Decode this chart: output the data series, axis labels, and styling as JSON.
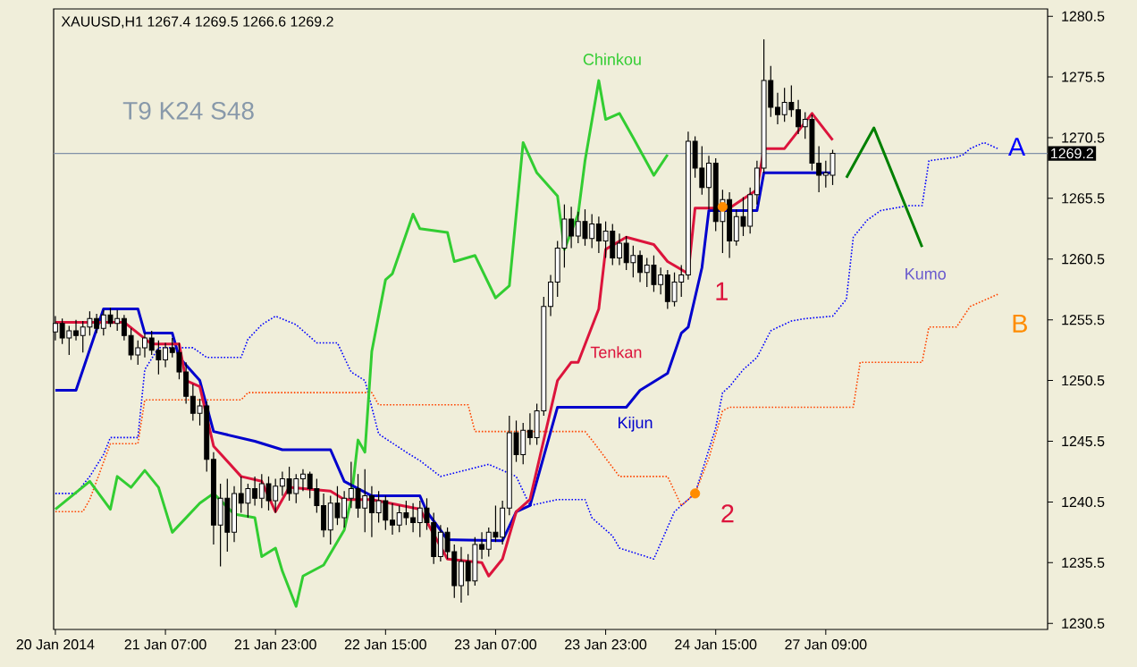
{
  "chart_data": {
    "type": "candlestick",
    "title": "XAUUSD,H1  1267.4 1269.5 1266.6 1269.2",
    "annotations": [
      "T9 K24 S48",
      "Chinkou",
      "Tenkan",
      "Kijun",
      "Kumo",
      "A",
      "B",
      "1",
      "2"
    ],
    "categories": [
      "20 Jan 2014",
      null,
      null,
      null,
      null,
      null,
      null,
      null,
      null,
      null,
      null,
      null,
      null,
      null,
      null,
      null,
      "21 Jan 07:00",
      null,
      null,
      null,
      null,
      null,
      null,
      null,
      null,
      null,
      null,
      null,
      null,
      null,
      null,
      null,
      "21 Jan 23:00",
      null,
      null,
      null,
      null,
      null,
      null,
      null,
      null,
      null,
      null,
      null,
      null,
      null,
      null,
      null,
      "22 Jan 15:00",
      null,
      null,
      null,
      null,
      null,
      null,
      null,
      null,
      null,
      null,
      null,
      null,
      null,
      null,
      null,
      "23 Jan 07:00",
      null,
      null,
      null,
      null,
      null,
      null,
      null,
      null,
      null,
      null,
      null,
      null,
      null,
      null,
      null,
      "23 Jan 23:00",
      null,
      null,
      null,
      null,
      null,
      null,
      null,
      null,
      null,
      null,
      null,
      null,
      null,
      null,
      null,
      "24 Jan 15:00",
      null,
      null,
      null,
      null,
      null,
      null,
      null,
      null,
      null,
      null,
      null,
      null,
      null,
      null,
      null,
      "27 Jan 09:00",
      null,
      null,
      null,
      null,
      null,
      null,
      null,
      null,
      null,
      null,
      null,
      null,
      null,
      null,
      null,
      null,
      null,
      null,
      null,
      null,
      null,
      null,
      null,
      null,
      null,
      null,
      null,
      null,
      null,
      null,
      null,
      null
    ],
    "ohlc": [
      [
        1254.5,
        1255.8,
        1253.8,
        1255.2
      ],
      [
        1255.2,
        1255.6,
        1253.5,
        1254.0
      ],
      [
        1254.0,
        1255.0,
        1252.6,
        1254.6
      ],
      [
        1254.6,
        1255.5,
        1253.8,
        1254.2
      ],
      [
        1254.2,
        1255.4,
        1252.8,
        1254.9
      ],
      [
        1254.9,
        1256.2,
        1254.2,
        1255.6
      ],
      [
        1255.6,
        1256.0,
        1254.4,
        1254.8
      ],
      [
        1254.8,
        1256.3,
        1254.2,
        1255.9
      ],
      [
        1255.9,
        1256.5,
        1254.9,
        1255.2
      ],
      [
        1255.2,
        1256.3,
        1254.6,
        1255.6
      ],
      [
        1255.6,
        1255.9,
        1253.8,
        1254.2
      ],
      [
        1254.2,
        1254.8,
        1252.2,
        1252.6
      ],
      [
        1252.6,
        1253.8,
        1251.8,
        1253.2
      ],
      [
        1253.2,
        1254.4,
        1252.4,
        1254.0
      ],
      [
        1254.0,
        1254.6,
        1252.6,
        1253.0
      ],
      [
        1253.0,
        1253.8,
        1251.0,
        1252.2
      ],
      [
        1252.2,
        1253.6,
        1251.6,
        1253.2
      ],
      [
        1253.2,
        1254.0,
        1252.4,
        1252.8
      ],
      [
        1252.8,
        1253.6,
        1250.6,
        1251.2
      ],
      [
        1251.2,
        1252.0,
        1248.6,
        1249.2
      ],
      [
        1249.2,
        1250.2,
        1247.2,
        1247.8
      ],
      [
        1247.8,
        1249.0,
        1246.8,
        1248.4
      ],
      [
        1248.4,
        1248.8,
        1243.0,
        1244.0
      ],
      [
        1244.0,
        1244.6,
        1237.0,
        1238.6
      ],
      [
        1238.6,
        1242.0,
        1235.2,
        1240.8
      ],
      [
        1240.8,
        1242.4,
        1236.4,
        1238.0
      ],
      [
        1238.0,
        1241.8,
        1237.2,
        1241.2
      ],
      [
        1241.2,
        1242.6,
        1239.6,
        1240.4
      ],
      [
        1240.4,
        1242.0,
        1239.2,
        1241.6
      ],
      [
        1241.6,
        1242.6,
        1240.2,
        1240.8
      ],
      [
        1240.8,
        1242.8,
        1240.0,
        1242.0
      ],
      [
        1242.0,
        1242.6,
        1239.8,
        1240.6
      ],
      [
        1240.6,
        1242.4,
        1239.6,
        1241.8
      ],
      [
        1241.8,
        1243.0,
        1241.0,
        1242.4
      ],
      [
        1242.4,
        1243.4,
        1240.6,
        1241.2
      ],
      [
        1241.2,
        1242.8,
        1240.4,
        1242.4
      ],
      [
        1242.4,
        1243.2,
        1241.4,
        1242.8
      ],
      [
        1242.8,
        1243.0,
        1240.8,
        1241.6
      ],
      [
        1241.6,
        1242.4,
        1239.6,
        1240.2
      ],
      [
        1240.2,
        1241.2,
        1237.6,
        1238.2
      ],
      [
        1238.2,
        1241.0,
        1237.0,
        1240.4
      ],
      [
        1240.4,
        1241.8,
        1238.6,
        1239.2
      ],
      [
        1239.2,
        1241.4,
        1238.4,
        1240.8
      ],
      [
        1240.8,
        1243.8,
        1240.0,
        1241.6
      ],
      [
        1241.6,
        1242.8,
        1239.2,
        1240.0
      ],
      [
        1240.0,
        1243.2,
        1238.0,
        1241.0
      ],
      [
        1241.0,
        1241.8,
        1237.6,
        1239.6
      ],
      [
        1239.6,
        1241.4,
        1238.8,
        1240.6
      ],
      [
        1240.6,
        1241.0,
        1238.2,
        1239.0
      ],
      [
        1239.0,
        1240.4,
        1237.8,
        1238.6
      ],
      [
        1238.6,
        1240.2,
        1238.0,
        1239.6
      ],
      [
        1239.6,
        1240.6,
        1238.6,
        1239.2
      ],
      [
        1239.2,
        1240.4,
        1238.0,
        1238.8
      ],
      [
        1238.8,
        1240.6,
        1237.6,
        1240.0
      ],
      [
        1240.0,
        1240.8,
        1238.2,
        1238.8
      ],
      [
        1238.8,
        1239.6,
        1235.4,
        1236.0
      ],
      [
        1236.0,
        1238.6,
        1235.6,
        1238.0
      ],
      [
        1238.0,
        1238.4,
        1235.8,
        1236.4
      ],
      [
        1236.4,
        1237.0,
        1232.6,
        1233.6
      ],
      [
        1233.6,
        1236.8,
        1232.2,
        1235.6
      ],
      [
        1235.6,
        1236.2,
        1232.8,
        1234.0
      ],
      [
        1234.0,
        1237.6,
        1233.6,
        1237.0
      ],
      [
        1237.0,
        1238.0,
        1235.8,
        1236.6
      ],
      [
        1236.6,
        1238.4,
        1236.0,
        1238.0
      ],
      [
        1238.0,
        1240.2,
        1237.2,
        1237.6
      ],
      [
        1237.6,
        1240.6,
        1237.0,
        1240.0
      ],
      [
        1240.0,
        1247.6,
        1239.4,
        1246.2
      ],
      [
        1246.2,
        1247.2,
        1243.8,
        1244.4
      ],
      [
        1244.4,
        1247.0,
        1243.6,
        1246.4
      ],
      [
        1246.4,
        1247.8,
        1245.2,
        1245.8
      ],
      [
        1245.8,
        1248.6,
        1245.2,
        1248.0
      ],
      [
        1248.0,
        1257.4,
        1247.6,
        1256.6
      ],
      [
        1256.6,
        1259.2,
        1255.8,
        1258.6
      ],
      [
        1258.6,
        1262.0,
        1257.4,
        1261.4
      ],
      [
        1261.4,
        1265.0,
        1259.8,
        1263.8
      ],
      [
        1263.8,
        1264.8,
        1261.4,
        1262.4
      ],
      [
        1262.4,
        1264.4,
        1261.8,
        1263.6
      ],
      [
        1263.6,
        1264.6,
        1261.6,
        1262.2
      ],
      [
        1262.2,
        1264.2,
        1261.4,
        1263.4
      ],
      [
        1263.4,
        1264.0,
        1261.0,
        1262.0
      ],
      [
        1262.0,
        1263.6,
        1260.6,
        1262.8
      ],
      [
        1262.8,
        1263.4,
        1260.0,
        1260.6
      ],
      [
        1260.6,
        1262.6,
        1260.0,
        1261.8
      ],
      [
        1261.8,
        1262.4,
        1259.6,
        1260.2
      ],
      [
        1260.2,
        1261.6,
        1259.0,
        1260.8
      ],
      [
        1260.8,
        1261.2,
        1258.6,
        1259.4
      ],
      [
        1259.4,
        1260.6,
        1258.2,
        1260.0
      ],
      [
        1260.0,
        1260.8,
        1257.8,
        1258.4
      ],
      [
        1258.4,
        1259.8,
        1257.6,
        1259.2
      ],
      [
        1259.2,
        1259.6,
        1256.4,
        1257.0
      ],
      [
        1257.0,
        1259.4,
        1256.6,
        1258.6
      ],
      [
        1258.6,
        1260.0,
        1257.4,
        1259.2
      ],
      [
        1259.2,
        1271.0,
        1258.8,
        1270.2
      ],
      [
        1270.2,
        1270.6,
        1267.2,
        1268.0
      ],
      [
        1268.0,
        1269.8,
        1265.8,
        1266.4
      ],
      [
        1266.4,
        1269.0,
        1264.6,
        1268.4
      ],
      [
        1268.4,
        1268.8,
        1262.8,
        1263.6
      ],
      [
        1263.6,
        1266.2,
        1261.0,
        1265.4
      ],
      [
        1265.4,
        1266.0,
        1260.6,
        1262.0
      ],
      [
        1262.0,
        1264.6,
        1261.6,
        1264.0
      ],
      [
        1264.0,
        1265.6,
        1262.4,
        1263.2
      ],
      [
        1263.2,
        1266.4,
        1262.6,
        1265.8
      ],
      [
        1265.8,
        1268.6,
        1265.0,
        1268.0
      ],
      [
        1268.0,
        1278.6,
        1267.6,
        1275.2
      ],
      [
        1275.2,
        1276.4,
        1272.2,
        1273.0
      ],
      [
        1273.0,
        1274.2,
        1271.6,
        1272.4
      ],
      [
        1272.4,
        1274.6,
        1271.8,
        1273.4
      ],
      [
        1273.4,
        1274.8,
        1272.2,
        1272.8
      ],
      [
        1272.8,
        1273.6,
        1270.8,
        1271.4
      ],
      [
        1271.4,
        1272.6,
        1270.4,
        1272.0
      ],
      [
        1272.0,
        1272.4,
        1267.8,
        1268.4
      ],
      [
        1268.4,
        1269.8,
        1266.0,
        1267.4
      ],
      [
        1267.4,
        1268.6,
        1266.4,
        1267.6
      ],
      [
        1267.4,
        1269.5,
        1266.6,
        1269.2
      ],
      null,
      null,
      null,
      null,
      null,
      null,
      null,
      null,
      null,
      null,
      null,
      null,
      null,
      null,
      null,
      null,
      null,
      null,
      null,
      null,
      null,
      null,
      null,
      null,
      null,
      null,
      null,
      null,
      null,
      null,
      null
    ],
    "series": [
      {
        "type": "line",
        "color": "#0000ff",
        "line_style": "dotted",
        "values": [
          1241.2,
          null,
          null,
          1241.2,
          null,
          1242.6,
          null,
          1244.4,
          1245.8,
          null,
          null,
          null,
          1245.8,
          1251.4,
          null,
          1253.2,
          null,
          null,
          null,
          null,
          1253.2,
          null,
          1252.4,
          null,
          null,
          null,
          null,
          1252.4,
          1253.9,
          null,
          1255.1,
          null,
          1255.8,
          null,
          null,
          1255.1,
          null,
          null,
          1253.6,
          null,
          null,
          1253.6,
          null,
          1251.2,
          null,
          1250.5,
          null,
          1246.1,
          null,
          null,
          null,
          1244.6,
          null,
          1243.9,
          null,
          null,
          1242.6,
          null,
          null,
          null,
          null,
          null,
          null,
          1243.6,
          null,
          null,
          null,
          1242.6,
          null,
          1240.2,
          null,
          null,
          null,
          1240.7,
          null,
          null,
          null,
          1240.7,
          1239.2,
          null,
          null,
          1237.7,
          1236.7,
          null,
          null,
          null,
          null,
          1235.8,
          null,
          null,
          1239.7,
          null,
          null,
          1241.2,
          null,
          null,
          1246.6,
          1249.5,
          1250.0,
          null,
          1251.4,
          null,
          1252.4,
          null,
          1254.6,
          null,
          null,
          1255.4,
          null,
          1255.6,
          null,
          null,
          null,
          1255.8,
          null,
          1257.2,
          1262.3,
          null,
          1263.7,
          null,
          1264.5,
          null,
          null,
          null,
          1264.9,
          null,
          1264.9,
          1268.6,
          null,
          null,
          null,
          1268.9,
          1269.1,
          1269.6,
          null,
          1270.1,
          null,
          1269.6,
          null,
          null,
          null,
          null,
          null,
          null,
          null
        ]
      },
      {
        "type": "line",
        "color": "#ff4500",
        "line_style": "dotted",
        "values": [
          1239.7,
          null,
          null,
          null,
          1239.7,
          1240.7,
          null,
          null,
          1245.3,
          null,
          null,
          null,
          1245.3,
          1248.9,
          null,
          null,
          null,
          null,
          null,
          null,
          null,
          null,
          null,
          null,
          null,
          null,
          null,
          1248.9,
          1249.5,
          null,
          null,
          null,
          null,
          null,
          null,
          null,
          null,
          null,
          null,
          null,
          null,
          null,
          null,
          null,
          null,
          null,
          1249.5,
          1248.5,
          null,
          null,
          null,
          null,
          null,
          null,
          null,
          null,
          null,
          null,
          null,
          null,
          1248.5,
          1246.3,
          null,
          null,
          null,
          null,
          null,
          null,
          null,
          null,
          null,
          null,
          null,
          null,
          null,
          null,
          null,
          1246.3,
          1245.6,
          null,
          null,
          null,
          1242.6,
          null,
          null,
          null,
          null,
          null,
          null,
          1242.6,
          null,
          1240.2,
          null,
          1241.2,
          null,
          1244.1,
          null,
          1248.0,
          1248.3,
          null,
          null,
          null,
          null,
          null,
          null,
          null,
          null,
          null,
          null,
          null,
          null,
          null,
          null,
          null,
          null,
          null,
          1248.3,
          1252.0,
          null,
          null,
          null,
          null,
          null,
          null,
          null,
          null,
          1252.0,
          1254.9,
          null,
          null,
          null,
          1254.9,
          null,
          1256.6,
          null,
          null,
          null,
          1257.6,
          null,
          null,
          null,
          null,
          null,
          null,
          null
        ]
      },
      {
        "type": "line",
        "color": "#32cd32",
        "line_style": "solid",
        "values": [
          1239.9,
          null,
          null,
          null,
          null,
          1242.2,
          null,
          null,
          1239.9,
          1242.6,
          null,
          1241.7,
          null,
          1243.1,
          null,
          1241.7,
          null,
          1238.0,
          null,
          null,
          null,
          1240.4,
          null,
          1241.2,
          null,
          null,
          1239.5,
          null,
          null,
          1239.2,
          1236.0,
          null,
          1236.7,
          1234.8,
          null,
          1231.9,
          1234.4,
          null,
          null,
          1235.3,
          null,
          null,
          1238.2,
          1240.7,
          1245.6,
          1244.6,
          1252.9,
          null,
          1258.8,
          1259.3,
          null,
          null,
          1264.2,
          1263.0,
          null,
          null,
          null,
          1262.7,
          1260.3,
          null,
          null,
          1260.8,
          null,
          null,
          1257.3,
          null,
          1258.3,
          null,
          1270.1,
          null,
          1267.6,
          null,
          null,
          1265.7,
          1261.3,
          null,
          1264.2,
          1268.6,
          null,
          1275.2,
          1272.0,
          null,
          1272.5,
          null,
          1270.5,
          null,
          null,
          1267.4,
          null,
          1269.1,
          null,
          null,
          null,
          null,
          null,
          null,
          null,
          null,
          null,
          null,
          null,
          null,
          null,
          null,
          null,
          null,
          null,
          null,
          null,
          null,
          null,
          null,
          null,
          null,
          null,
          null,
          null,
          null,
          null,
          null,
          null,
          null,
          null,
          null,
          null,
          null,
          null,
          null,
          null,
          null,
          null,
          null,
          null,
          null,
          null,
          null,
          null,
          null,
          null,
          null,
          null,
          null,
          null,
          null,
          null
        ]
      },
      {
        "type": "line",
        "color": "#0000cd",
        "line_style": "solid",
        "values": [
          1249.7,
          null,
          null,
          1249.7,
          null,
          null,
          null,
          1256.4,
          null,
          null,
          null,
          null,
          1256.4,
          1254.4,
          null,
          null,
          null,
          1254.4,
          1252.4,
          null,
          null,
          1250.5,
          null,
          1246.3,
          null,
          null,
          null,
          null,
          null,
          1245.5,
          null,
          null,
          null,
          1244.8,
          null,
          null,
          null,
          null,
          null,
          null,
          1244.8,
          null,
          1242.2,
          null,
          null,
          null,
          1241.0,
          null,
          null,
          null,
          null,
          null,
          null,
          1241.0,
          1239.7,
          null,
          null,
          1237.4,
          null,
          null,
          null,
          null,
          null,
          null,
          null,
          1237.3,
          null,
          1239.7,
          null,
          1240.2,
          null,
          null,
          null,
          1248.3,
          null,
          null,
          null,
          null,
          null,
          null,
          null,
          null,
          null,
          1248.3,
          null,
          1249.7,
          null,
          null,
          null,
          1251.1,
          null,
          1254.4,
          1254.9,
          null,
          1259.8,
          1264.5,
          null,
          null,
          null,
          null,
          null,
          null,
          1264.5,
          1267.6,
          null,
          null,
          null,
          null,
          null,
          null,
          null,
          null,
          null,
          1267.6,
          null,
          null,
          null,
          null,
          null,
          null,
          null,
          null,
          null,
          null,
          null,
          null,
          null,
          null,
          null,
          null,
          null,
          null,
          null,
          null,
          null,
          null,
          null,
          null,
          null,
          null,
          null,
          null,
          null,
          null,
          null
        ]
      },
      {
        "type": "line",
        "color": "#dc143c",
        "line_style": "solid",
        "values": [
          1255.3,
          null,
          null,
          null,
          null,
          null,
          null,
          null,
          null,
          null,
          1255.3,
          null,
          1254.4,
          null,
          1253.5,
          null,
          null,
          null,
          1253.5,
          1250.5,
          null,
          1250.0,
          null,
          1245.1,
          null,
          null,
          null,
          1242.6,
          null,
          null,
          1242.2,
          null,
          1239.7,
          null,
          1241.7,
          null,
          null,
          null,
          null,
          null,
          1241.4,
          null,
          1240.7,
          null,
          null,
          null,
          1240.7,
          null,
          null,
          null,
          null,
          null,
          null,
          1239.9,
          null,
          null,
          null,
          1235.8,
          null,
          null,
          null,
          null,
          1235.5,
          1234.4,
          null,
          1235.8,
          null,
          1239.7,
          null,
          1240.7,
          null,
          null,
          null,
          1250.5,
          null,
          1252.0,
          1252.0,
          null,
          null,
          1256.4,
          1261.3,
          null,
          null,
          1262.3,
          null,
          null,
          null,
          1261.7,
          null,
          1260.3,
          null,
          null,
          1259.3,
          1264.7,
          null,
          null,
          null,
          null,
          1264.7,
          null,
          null,
          null,
          1266.2,
          1269.6,
          null,
          null,
          1269.6,
          null,
          null,
          null,
          1272.5,
          null,
          null,
          1270.3,
          null,
          null,
          null,
          null,
          null,
          null,
          null,
          null,
          null,
          null,
          null,
          null,
          null,
          null,
          null,
          null,
          null,
          null,
          null,
          null,
          null,
          null,
          null,
          null,
          null,
          null,
          null,
          null,
          null,
          null,
          null
        ]
      },
      {
        "type": "line",
        "color": "#008000",
        "line_style": "solid",
        "values": [
          null,
          null,
          null,
          null,
          null,
          null,
          null,
          null,
          null,
          null,
          null,
          null,
          null,
          null,
          null,
          null,
          null,
          null,
          null,
          null,
          null,
          null,
          null,
          null,
          null,
          null,
          null,
          null,
          null,
          null,
          null,
          null,
          null,
          null,
          null,
          null,
          null,
          null,
          null,
          null,
          null,
          null,
          null,
          null,
          null,
          null,
          null,
          null,
          null,
          null,
          null,
          null,
          null,
          null,
          null,
          null,
          null,
          null,
          null,
          null,
          null,
          null,
          null,
          null,
          null,
          null,
          null,
          null,
          null,
          null,
          null,
          null,
          null,
          null,
          null,
          null,
          null,
          null,
          null,
          null,
          null,
          null,
          null,
          null,
          null,
          null,
          null,
          null,
          null,
          null,
          null,
          null,
          null,
          null,
          null,
          null,
          null,
          null,
          null,
          null,
          null,
          null,
          null,
          null,
          null,
          null,
          null,
          null,
          null,
          null,
          null,
          null,
          null,
          null,
          null,
          1267.2,
          null,
          null,
          null,
          1271.3,
          null,
          null,
          null,
          null,
          null,
          null,
          1261.5,
          null,
          null,
          null,
          null,
          null,
          null,
          null,
          null,
          null,
          null,
          null,
          null,
          null,
          null,
          null,
          null,
          null,
          null
        ]
      },
      {
        "type": "scatter",
        "color": "#ff8c00",
        "marker": "circle",
        "values": [
          null,
          null,
          null,
          null,
          null,
          null,
          null,
          null,
          null,
          null,
          null,
          null,
          null,
          null,
          null,
          null,
          null,
          null,
          null,
          null,
          null,
          null,
          null,
          null,
          null,
          null,
          null,
          null,
          null,
          null,
          null,
          null,
          null,
          null,
          null,
          null,
          null,
          null,
          null,
          null,
          null,
          null,
          null,
          null,
          null,
          null,
          null,
          null,
          null,
          null,
          null,
          null,
          null,
          null,
          null,
          null,
          null,
          null,
          null,
          null,
          null,
          null,
          null,
          null,
          null,
          null,
          null,
          null,
          null,
          null,
          null,
          null,
          null,
          null,
          null,
          null,
          null,
          null,
          null,
          null,
          null,
          null,
          null,
          null,
          null,
          null,
          null,
          null,
          null,
          null,
          null,
          null,
          null,
          1241.2,
          null,
          null,
          null,
          1264.8,
          null,
          null,
          null,
          null,
          null,
          null,
          null,
          null,
          null,
          null,
          null,
          null,
          null,
          null,
          null,
          null,
          null,
          null,
          null,
          null,
          null,
          null,
          null,
          null,
          null,
          null,
          null,
          null,
          null,
          null,
          null,
          null,
          null,
          null,
          null,
          null,
          null,
          null,
          null,
          null,
          null,
          null,
          null,
          null,
          null,
          null,
          null
        ]
      }
    ],
    "ref_lines": [
      {
        "axis": "y",
        "value": 1269.2,
        "label": "1269.2",
        "color": "#8090a8"
      }
    ],
    "ylim": [
      1230.0,
      1281.1
    ],
    "yticks": [
      1230.5,
      1235.5,
      1240.5,
      1245.5,
      1250.5,
      1255.5,
      1260.5,
      1265.5,
      1270.5,
      1275.5,
      1280.5
    ]
  }
}
